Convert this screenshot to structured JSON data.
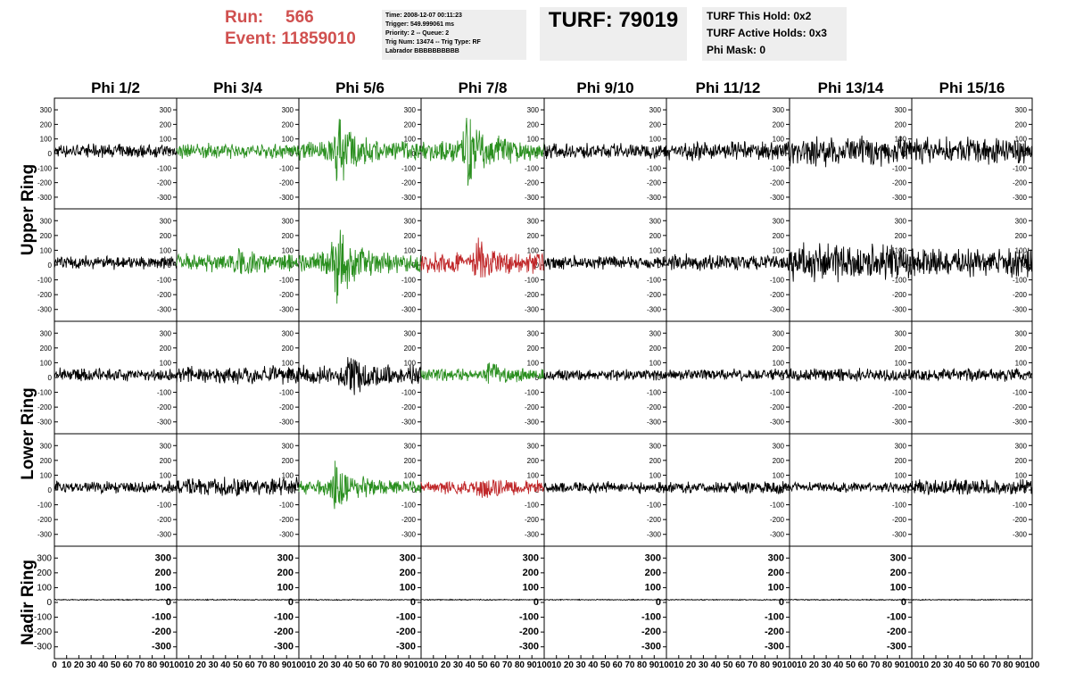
{
  "header": {
    "run_label": "Run:",
    "run_value": "566",
    "event_label": "Event:",
    "event_value": "11859010",
    "info_lines": [
      "Time: 2008-12-07 00:11:23",
      "Trigger: 549.999061 ms",
      "Priority: 2 -- Queue: 2",
      "Trig Num: 13474 -- Trig Type: RF",
      "Labrador BBBBBBBBBB"
    ],
    "turf_title": "TURF: 79019",
    "hold_lines": [
      "TURF This Hold: 0x2",
      "TURF Active Holds: 0x3",
      "Phi Mask: 0"
    ]
  },
  "colors": {
    "run_text": "#d0504f",
    "trace_default": "#000000",
    "trace_green": "#2a8f1f",
    "trace_red": "#c0282a",
    "info_bg": "#eeeeee"
  },
  "chart_data": {
    "type": "line",
    "description_axes": "Waveform grid: 5 rings x 8 phi sectors",
    "columns": [
      "Phi 1/2",
      "Phi 3/4",
      "Phi 5/6",
      "Phi 7/8",
      "Phi 9/10",
      "Phi 11/12",
      "Phi 13/14",
      "Phi 15/16"
    ],
    "rows": [
      "Upper Ring",
      "",
      "Lower Ring",
      "",
      "Nadir Ring"
    ],
    "row_titles": [
      {
        "text": "Upper Ring",
        "spans_rows": [
          0,
          1
        ]
      },
      {
        "text": "Lower Ring",
        "spans_rows": [
          2,
          3
        ]
      },
      {
        "text": "Nadir Ring",
        "spans_rows": [
          4,
          4
        ]
      }
    ],
    "y_ticks": [
      "300",
      "200",
      "100",
      "0",
      "-100",
      "-200",
      "-300"
    ],
    "ylim": [
      -380,
      380
    ],
    "x_ticks": [
      "0",
      "10",
      "20",
      "30",
      "40",
      "50",
      "60",
      "70",
      "80",
      "90",
      "100"
    ],
    "xlim": [
      0,
      100
    ],
    "panels": [
      [
        {
          "color": "black",
          "amp": 40,
          "burst": 0,
          "bc": 0
        },
        {
          "color": "green",
          "amp": 45,
          "burst": 0,
          "bc": 0
        },
        {
          "color": "green",
          "amp": 55,
          "burst": 250,
          "bc": 32
        },
        {
          "color": "green",
          "amp": 60,
          "burst": 300,
          "bc": 38
        },
        {
          "color": "black",
          "amp": 45,
          "burst": 0,
          "bc": 0
        },
        {
          "color": "black",
          "amp": 55,
          "burst": 0,
          "bc": 0
        },
        {
          "color": "black",
          "amp": 90,
          "burst": 0,
          "bc": 0
        },
        {
          "color": "black",
          "amp": 80,
          "burst": 0,
          "bc": 0
        }
      ],
      [
        {
          "color": "black",
          "amp": 40,
          "burst": 0,
          "bc": 0
        },
        {
          "color": "green",
          "amp": 55,
          "burst": 60,
          "bc": 50
        },
        {
          "color": "green",
          "amp": 60,
          "burst": 340,
          "bc": 30
        },
        {
          "color": "red",
          "amp": 60,
          "burst": 130,
          "bc": 45
        },
        {
          "color": "black",
          "amp": 40,
          "burst": 0,
          "bc": 0
        },
        {
          "color": "black",
          "amp": 50,
          "burst": 0,
          "bc": 0
        },
        {
          "color": "black",
          "amp": 110,
          "burst": 0,
          "bc": 0
        },
        {
          "color": "black",
          "amp": 85,
          "burst": 0,
          "bc": 0
        }
      ],
      [
        {
          "color": "black",
          "amp": 40,
          "burst": 0,
          "bc": 0
        },
        {
          "color": "black",
          "amp": 55,
          "burst": 0,
          "bc": 0
        },
        {
          "color": "black",
          "amp": 60,
          "burst": 130,
          "bc": 40
        },
        {
          "color": "green",
          "amp": 35,
          "burst": 80,
          "bc": 55
        },
        {
          "color": "black",
          "amp": 35,
          "burst": 0,
          "bc": 0
        },
        {
          "color": "black",
          "amp": 35,
          "burst": 0,
          "bc": 0
        },
        {
          "color": "black",
          "amp": 40,
          "burst": 0,
          "bc": 0
        },
        {
          "color": "black",
          "amp": 40,
          "burst": 0,
          "bc": 0
        }
      ],
      [
        {
          "color": "black",
          "amp": 35,
          "burst": 0,
          "bc": 0
        },
        {
          "color": "black",
          "amp": 55,
          "burst": 0,
          "bc": 0
        },
        {
          "color": "green",
          "amp": 40,
          "burst": 200,
          "bc": 30
        },
        {
          "color": "red",
          "amp": 40,
          "burst": 70,
          "bc": 50
        },
        {
          "color": "black",
          "amp": 35,
          "burst": 0,
          "bc": 0
        },
        {
          "color": "black",
          "amp": 35,
          "burst": 0,
          "bc": 0
        },
        {
          "color": "black",
          "amp": 30,
          "burst": 0,
          "bc": 0
        },
        {
          "color": "black",
          "amp": 50,
          "burst": 0,
          "bc": 0
        }
      ],
      [
        {
          "color": "black",
          "amp": 3,
          "burst": 0,
          "bc": 0
        },
        {
          "color": "black",
          "amp": 3,
          "burst": 0,
          "bc": 0
        },
        {
          "color": "black",
          "amp": 3,
          "burst": 0,
          "bc": 0
        },
        {
          "color": "black",
          "amp": 3,
          "burst": 0,
          "bc": 0
        },
        {
          "color": "black",
          "amp": 3,
          "burst": 0,
          "bc": 0
        },
        {
          "color": "black",
          "amp": 3,
          "burst": 0,
          "bc": 0
        },
        {
          "color": "black",
          "amp": 3,
          "burst": 0,
          "bc": 0
        },
        {
          "color": "black",
          "amp": 3,
          "burst": 0,
          "bc": 0
        }
      ]
    ],
    "nadir_right_axis_hidden_after_column": 6
  }
}
